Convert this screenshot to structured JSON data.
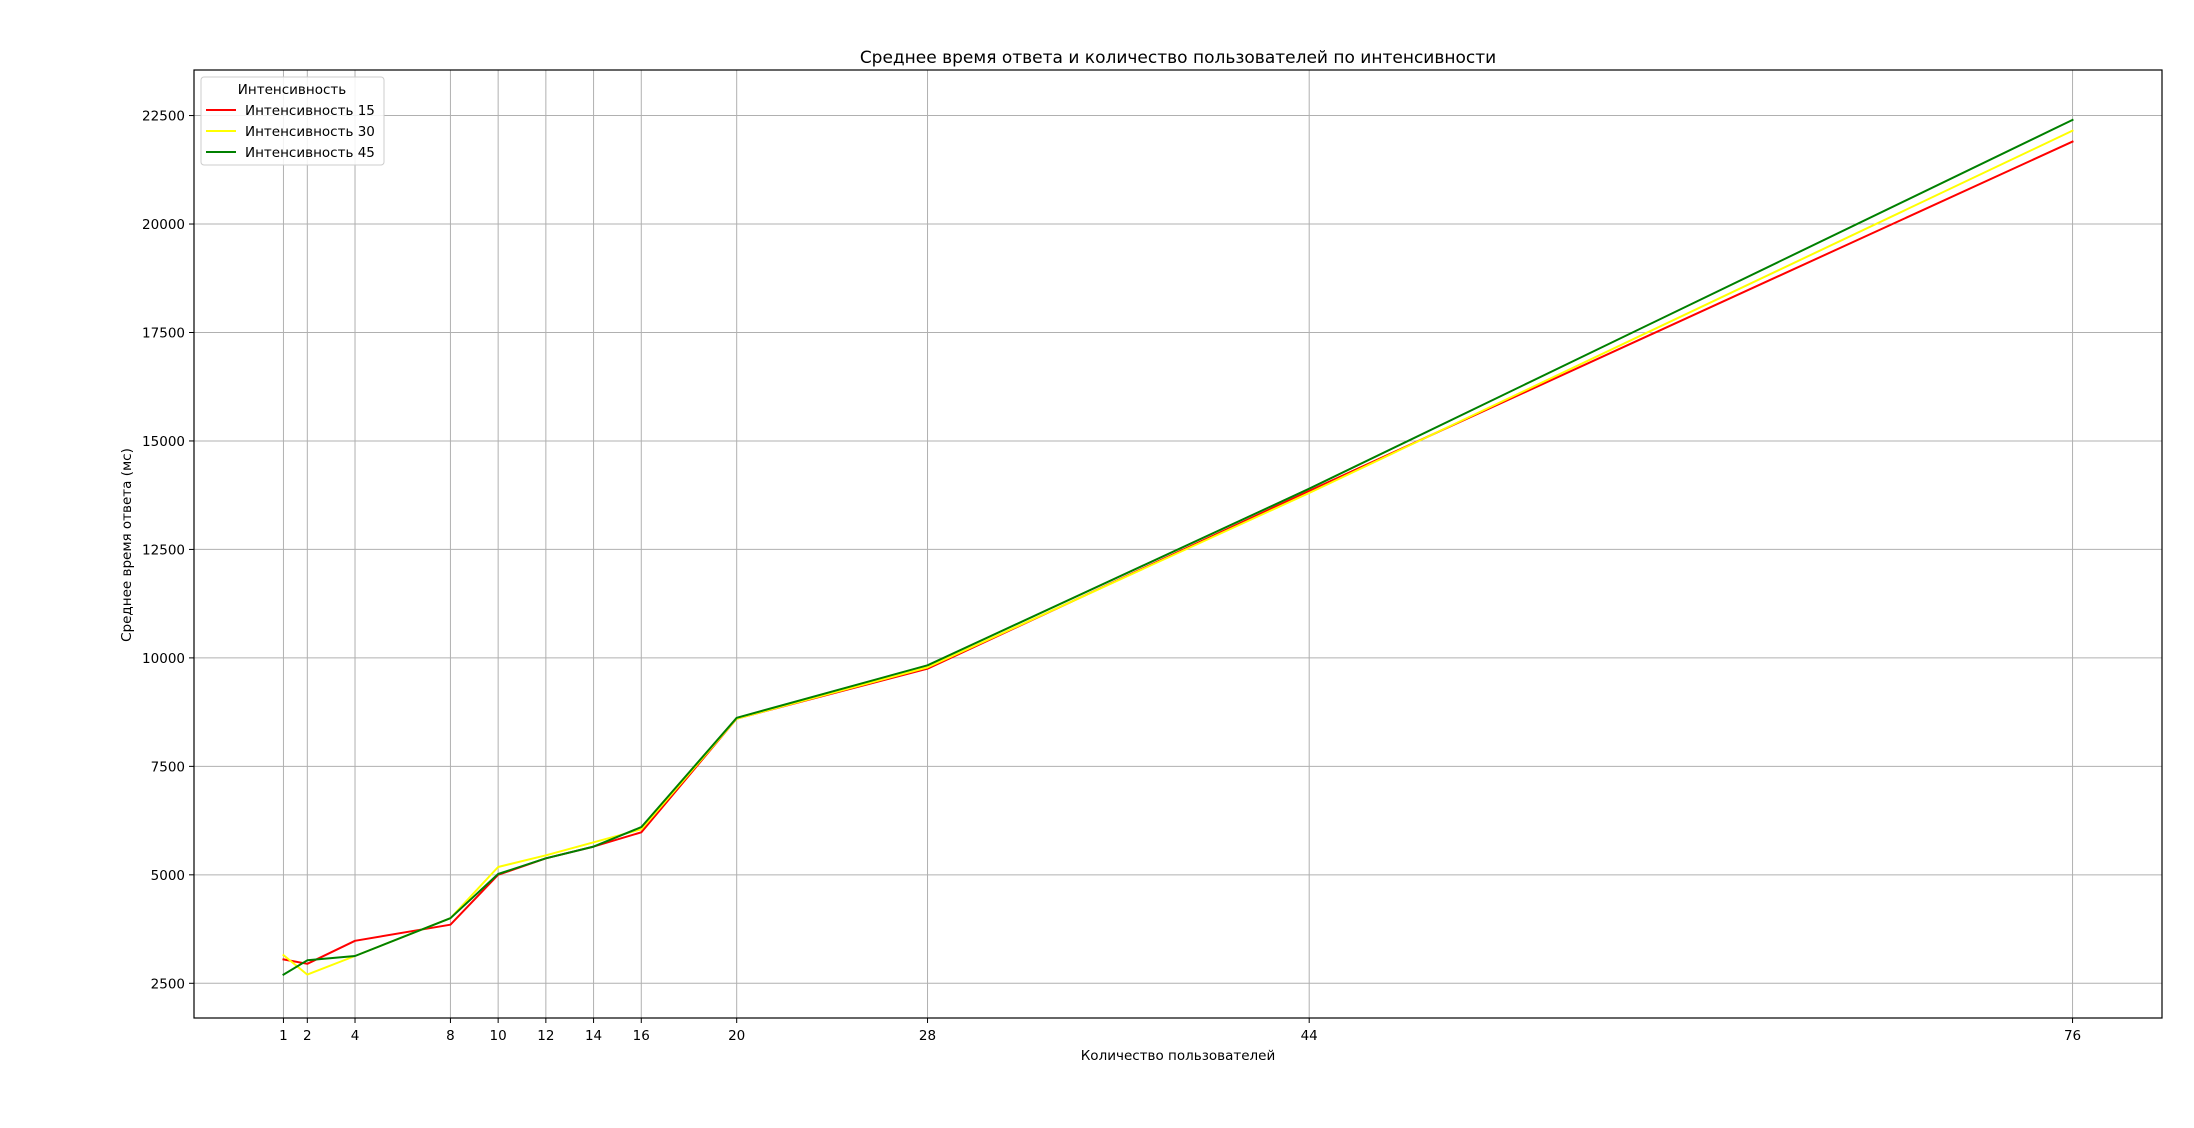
{
  "chart_data": {
    "type": "line",
    "title": "Среднее время ответа и количество пользователей по интенсивности",
    "xlabel": "Количество пользователей",
    "ylabel": "Среднее время ответа (мс)",
    "x": [
      1,
      2,
      4,
      8,
      10,
      12,
      14,
      16,
      20,
      28,
      44,
      76
    ],
    "x_ticks": [
      "1",
      "2",
      "4",
      "8",
      "10",
      "12",
      "14",
      "16",
      "20",
      "28",
      "44",
      "76"
    ],
    "xlim": [
      -2.75,
      79.75
    ],
    "ylim": [
      1700,
      23550
    ],
    "y_ticks": [
      2500,
      5000,
      7500,
      10000,
      12500,
      15000,
      17500,
      20000,
      22500
    ],
    "grid": true,
    "legend": {
      "title": "Интенсивность",
      "placement": "top-left"
    },
    "series": [
      {
        "name": "Интенсивность 15",
        "color": "#ff0000",
        "values": [
          3050,
          2950,
          3480,
          3850,
          5000,
          5380,
          5650,
          5980,
          8600,
          9750,
          13850,
          21900
        ]
      },
      {
        "name": "Интенсивность 30",
        "color": "#ffff00",
        "values": [
          3150,
          2700,
          3130,
          4000,
          5180,
          5450,
          5750,
          6050,
          8600,
          9780,
          13800,
          22150
        ]
      },
      {
        "name": "Интенсивность 45",
        "color": "#008000",
        "values": [
          2700,
          3030,
          3130,
          4000,
          5020,
          5380,
          5650,
          6100,
          8620,
          9830,
          13900,
          22400
        ]
      }
    ]
  }
}
